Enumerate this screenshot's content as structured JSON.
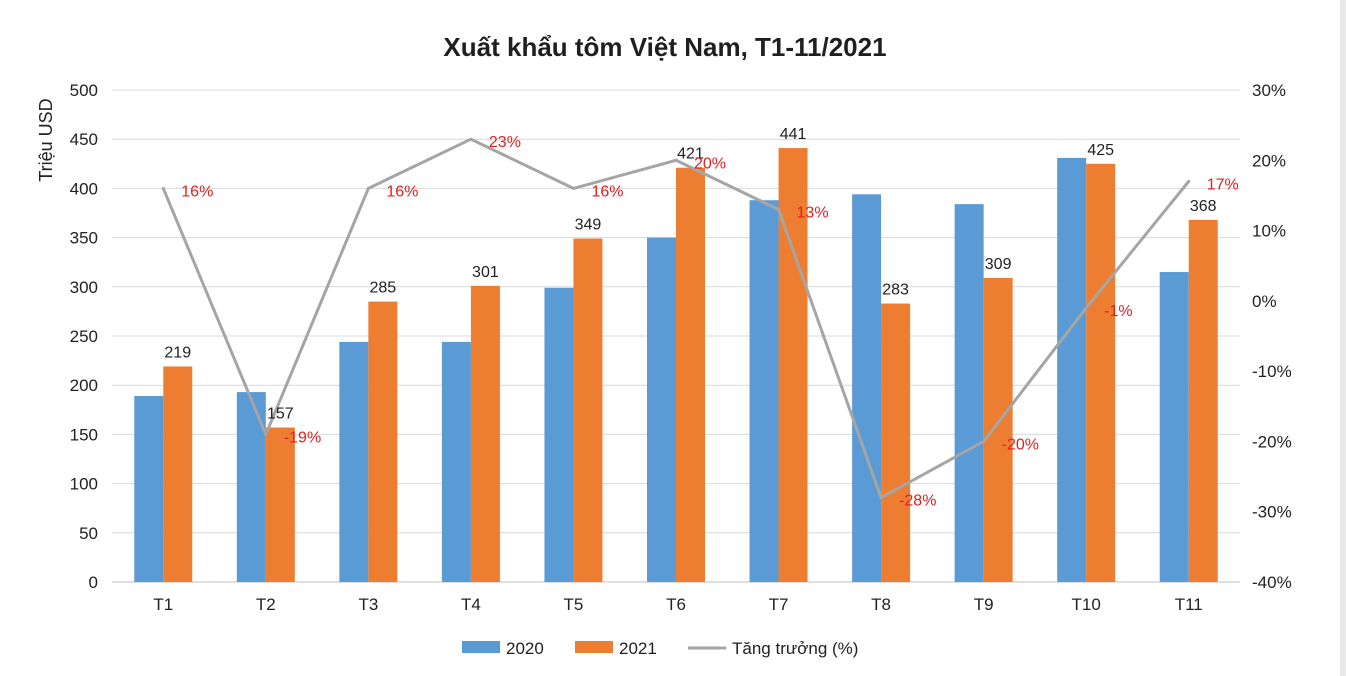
{
  "chart_data": {
    "type": "bar",
    "title": "Xuất khẩu tôm Việt Nam, T1-11/2021",
    "ylabel": "Triệu USD",
    "y2label": "",
    "xlabel": "",
    "ylim": [
      0,
      500
    ],
    "yticks": [
      "0",
      "50",
      "100",
      "150",
      "200",
      "250",
      "300",
      "350",
      "400",
      "450",
      "500"
    ],
    "y2lim": [
      -40,
      30
    ],
    "y2ticks": [
      "-40%",
      "-30%",
      "-20%",
      "-10%",
      "0%",
      "10%",
      "20%",
      "30%"
    ],
    "grid": true,
    "legend_position": "bottom",
    "categories": [
      "T1",
      "T2",
      "T3",
      "T4",
      "T5",
      "T6",
      "T7",
      "T8",
      "T9",
      "T10",
      "T11"
    ],
    "series": [
      {
        "name": "2020",
        "type": "bar",
        "axis": "left",
        "color": "#5b9bd5",
        "values": [
          189,
          193,
          244,
          244,
          299,
          350,
          388,
          394,
          384,
          431,
          315
        ]
      },
      {
        "name": "2021",
        "type": "bar",
        "axis": "left",
        "color": "#ed7d31",
        "values": [
          219,
          157,
          285,
          301,
          349,
          421,
          441,
          283,
          309,
          425,
          368
        ],
        "data_labels": [
          "219",
          "157",
          "285",
          "301",
          "349",
          "421",
          "441",
          "283",
          "309",
          "425",
          "368"
        ]
      },
      {
        "name": "Tăng trưởng (%)",
        "type": "line",
        "axis": "right",
        "color": "#a5a5a5",
        "values": [
          16,
          -19,
          16,
          23,
          16,
          20,
          13,
          -28,
          -20,
          -1,
          17
        ],
        "data_labels": [
          "16%",
          "-19%",
          "16%",
          "23%",
          "16%",
          "20%",
          "13%",
          "-28%",
          "-20%",
          "-1%",
          "17%"
        ],
        "label_color": "#e02020"
      }
    ]
  }
}
